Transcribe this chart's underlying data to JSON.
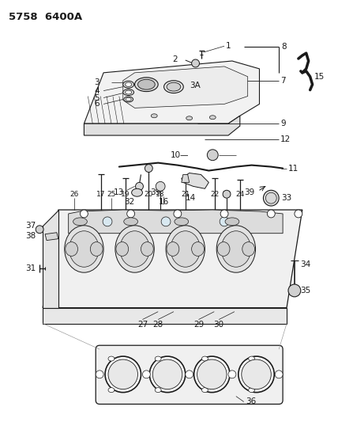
{
  "title": "5758  6400A",
  "bg": "#ffffff",
  "lc": "#1a1a1a",
  "fs": 7.5,
  "fs_title": 9.5,
  "figsize": [
    4.28,
    5.33
  ],
  "dpi": 100
}
